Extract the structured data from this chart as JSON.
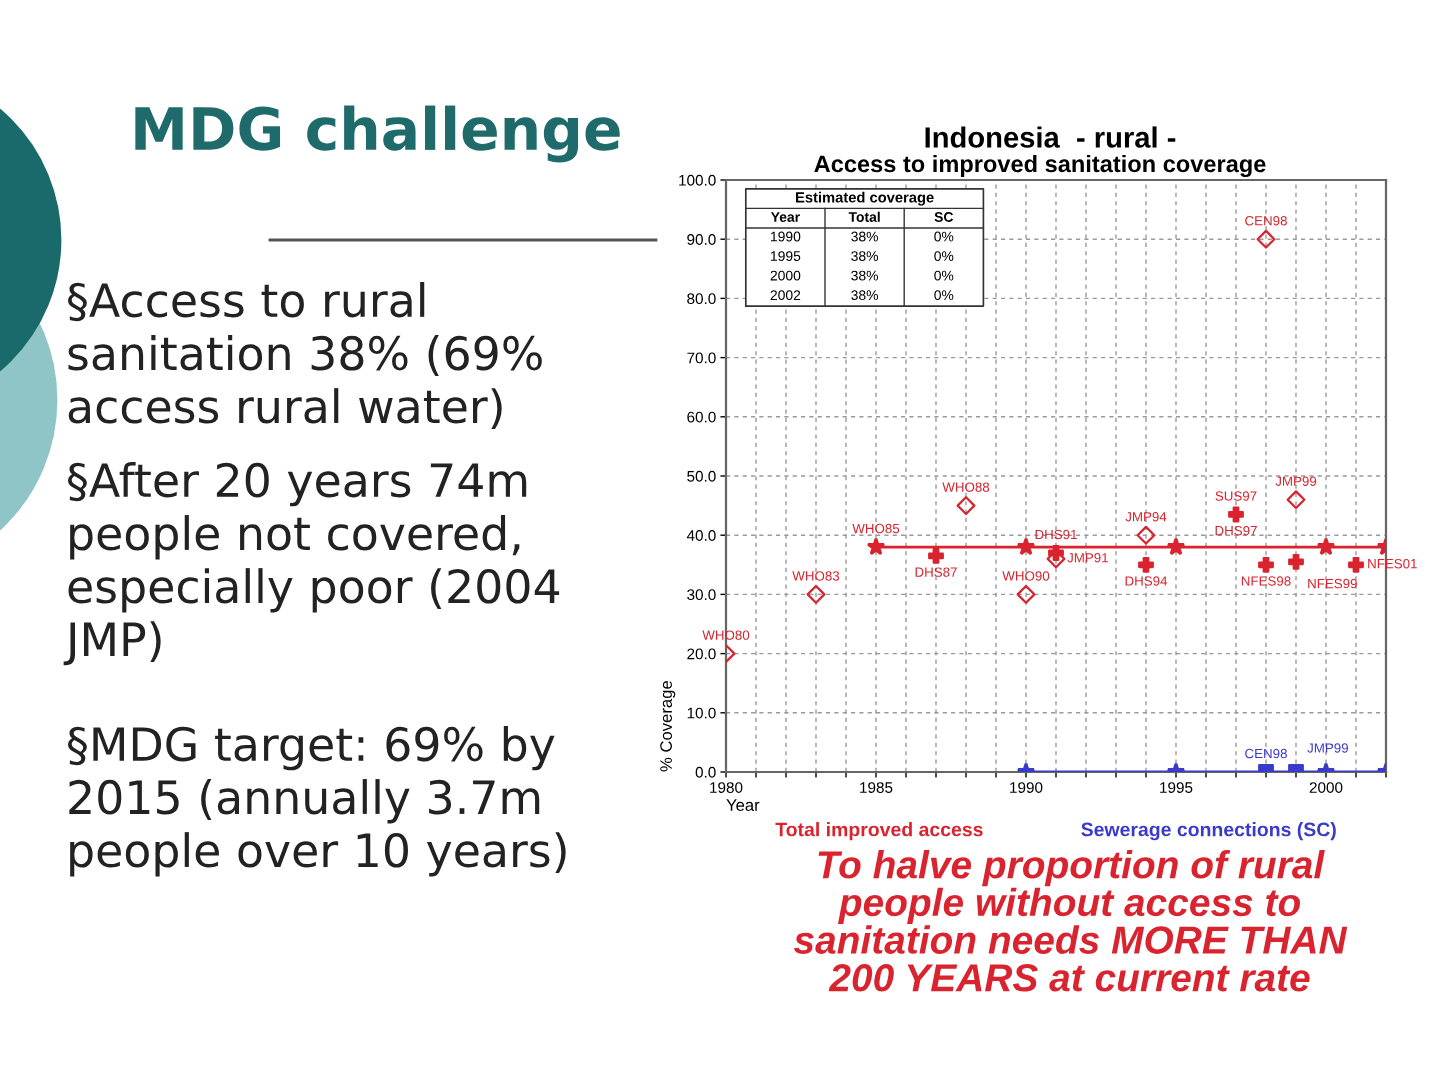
{
  "chart_data": {
    "type": "line",
    "title": "Indonesia  - rural -",
    "subtitle": "Access to improved sanitation coverage",
    "xlabel": "Year",
    "ylabel": "% Coverage",
    "xlim": [
      1980,
      2002
    ],
    "ylim": [
      0,
      100
    ],
    "xticks": [
      1980,
      {
        "value": 1981,
        "label": null
      },
      {
        "value": 1982,
        "label": null
      },
      {
        "value": 1983,
        "label": null
      },
      {
        "value": 1984,
        "label": null
      },
      1985,
      {
        "value": 1986,
        "label": null
      },
      {
        "value": 1987,
        "label": null
      },
      {
        "value": 1988,
        "label": null
      },
      {
        "value": 1989,
        "label": null
      },
      1990,
      {
        "value": 1991,
        "label": null
      },
      {
        "value": 1992,
        "label": null
      },
      {
        "value": 1993,
        "label": null
      },
      {
        "value": 1994,
        "label": null
      },
      1995,
      {
        "value": 1996,
        "label": null
      },
      {
        "value": 1997,
        "label": null
      },
      {
        "value": 1998,
        "label": null
      },
      {
        "value": 1999,
        "label": null
      },
      2000,
      {
        "value": 2001,
        "label": null
      },
      {
        "value": 2002,
        "label": null
      }
    ],
    "yticks": [
      {
        "value": 0,
        "label": "0.0"
      },
      {
        "value": 10,
        "label": "10.0"
      },
      {
        "value": 20,
        "label": "20.0"
      },
      {
        "value": 30,
        "label": "30.0"
      },
      {
        "value": 40,
        "label": "40.0"
      },
      {
        "value": 50,
        "label": "50.0"
      },
      {
        "value": 60,
        "label": "60.0"
      },
      {
        "value": 70,
        "label": "70.0"
      },
      {
        "value": 80,
        "label": "80.0"
      },
      {
        "value": 90,
        "label": "90.0"
      },
      {
        "value": 100,
        "label": "100.0"
      }
    ],
    "grid": true,
    "legend": "bottom",
    "series": [
      {
        "name": "Total improved access",
        "color": "#d9232e",
        "marker": "star",
        "x": [
          1985,
          1990,
          1995,
          2000,
          2002
        ],
        "values": [
          38,
          38,
          38,
          38,
          38
        ]
      },
      {
        "type": "scatter",
        "color": "#d9232e",
        "marker": "diamond",
        "x": [
          1980,
          1983,
          1988,
          1990,
          1991,
          1994,
          1998,
          1999
        ],
        "values": [
          20,
          30,
          45,
          30,
          36,
          40,
          90,
          46
        ]
      },
      {
        "type": "scatter",
        "color": "#d9232e",
        "marker": "cross",
        "x": [
          1987,
          1991,
          1994,
          1997,
          1998,
          1999,
          2001
        ],
        "values": [
          36.5,
          37,
          35,
          43.5,
          35,
          35.5,
          35
        ]
      },
      {
        "name": "Sewerage connections (SC)",
        "color": "#3a3acb",
        "marker": "star",
        "x": [
          1990,
          1995,
          2000,
          2002
        ],
        "values": [
          0,
          0,
          0,
          0
        ]
      },
      {
        "type": "scatter",
        "color": "#3a3acb",
        "marker": "square",
        "x": [
          1998,
          1999
        ],
        "values": [
          0,
          0
        ]
      }
    ],
    "annotations": [
      "MDG challenge",
      "§Access to rural\nsanitation 38% (69%\naccess rural water)",
      "§After 20 years 74m\npeople not covered,\nespecially poor (2004\nJMP)",
      "§MDG target: 69% by\n2015 (annually 3.7m\npeople over 10 years)",
      "To halve proportion of rural\npeople without access to\nsanitation needs MORE THAN\n200 YEARS at current rate",
      "Estimated coverage",
      "Year",
      "Total",
      "SC",
      "1990",
      "38%",
      "0%",
      "1995",
      "38%",
      "0%",
      "2000",
      "38%",
      "0%",
      "2002",
      "38%",
      "0%",
      {
        "text": "WHO80",
        "x": 1980,
        "y": 20
      },
      {
        "text": "WHO83",
        "x": 1983,
        "y": 30
      },
      {
        "text": "WHO85",
        "x": 1985,
        "y": 38
      },
      {
        "text": "DHS87",
        "x": 1987,
        "y": 36.5
      },
      {
        "text": "WHO88",
        "x": 1988,
        "y": 45
      },
      {
        "text": "WHO90",
        "x": 1990,
        "y": 30
      },
      {
        "text": "DHS91",
        "x": 1991,
        "y": 37
      },
      {
        "text": "JMP91",
        "x": 1991,
        "y": 36
      },
      {
        "text": "JMP94",
        "x": 1994,
        "y": 40
      },
      {
        "text": "DHS94",
        "x": 1994,
        "y": 35
      },
      {
        "text": "SUS97",
        "x": 1997,
        "y": 43.5
      },
      {
        "text": "DHS97",
        "x": 1997,
        "y": 43.5
      },
      {
        "text": "JMP99",
        "x": 1999,
        "y": 46
      },
      {
        "text": "NFES98",
        "x": 1998,
        "y": 35
      },
      {
        "text": "NFES99",
        "x": 1999,
        "y": 35.5
      },
      {
        "text": "NFES01",
        "x": 2001,
        "y": 35
      },
      {
        "text": "CEN98",
        "x": 1998,
        "y": 90
      },
      {
        "text": "CEN98",
        "x": 1998,
        "y": 0
      },
      {
        "text": "JMP99",
        "x": 1999,
        "y": 0
      }
    ]
  }
}
